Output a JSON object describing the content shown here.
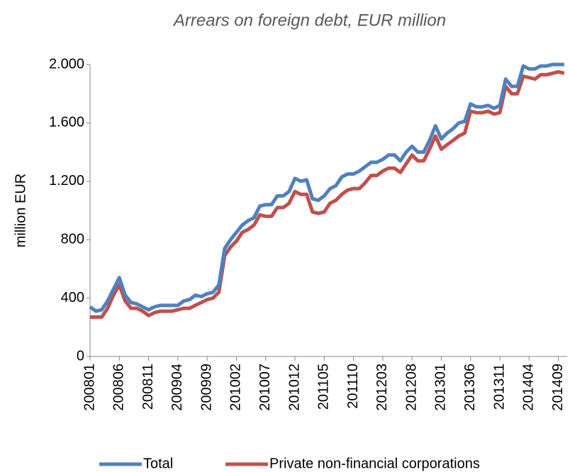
{
  "chart_data": {
    "type": "line",
    "title": "Arrears on foreign debt, EUR million",
    "y_label": "million EUR",
    "categories": [
      "200801",
      null,
      null,
      null,
      null,
      "200806",
      null,
      null,
      null,
      null,
      "200811",
      null,
      null,
      null,
      null,
      "200904",
      null,
      null,
      null,
      null,
      "200909",
      null,
      null,
      null,
      null,
      "201002",
      null,
      null,
      null,
      null,
      "201007",
      null,
      null,
      null,
      null,
      "201012",
      null,
      null,
      null,
      null,
      "201105",
      null,
      null,
      null,
      null,
      "201110",
      null,
      null,
      null,
      null,
      "201203",
      null,
      null,
      null,
      null,
      "201208",
      null,
      null,
      null,
      null,
      "201301",
      null,
      null,
      null,
      null,
      "201306",
      null,
      null,
      null,
      null,
      "201311",
      null,
      null,
      null,
      null,
      "201404",
      null,
      null,
      null,
      null,
      "201409",
      null
    ],
    "series": [
      {
        "name": "Total",
        "color": "#4f81bd",
        "values": [
          340,
          310,
          320,
          380,
          460,
          540,
          420,
          370,
          360,
          340,
          320,
          340,
          350,
          350,
          350,
          350,
          380,
          390,
          420,
          410,
          430,
          440,
          490,
          740,
          800,
          850,
          900,
          930,
          950,
          1030,
          1040,
          1040,
          1100,
          1100,
          1130,
          1220,
          1200,
          1210,
          1080,
          1070,
          1100,
          1150,
          1170,
          1230,
          1250,
          1250,
          1270,
          1300,
          1330,
          1330,
          1350,
          1380,
          1380,
          1340,
          1400,
          1440,
          1400,
          1400,
          1480,
          1580,
          1490,
          1530,
          1560,
          1600,
          1610,
          1730,
          1710,
          1710,
          1720,
          1700,
          1720,
          1900,
          1850,
          1850,
          1990,
          1970,
          1970,
          1990,
          1990,
          2000,
          2000,
          2000
        ]
      },
      {
        "name": "Private non-financial corporations",
        "color": "#c0504d",
        "values": [
          270,
          270,
          270,
          330,
          420,
          490,
          380,
          330,
          330,
          310,
          280,
          300,
          310,
          310,
          310,
          320,
          330,
          330,
          350,
          370,
          390,
          400,
          440,
          690,
          750,
          790,
          850,
          870,
          900,
          970,
          960,
          960,
          1020,
          1020,
          1050,
          1130,
          1110,
          1110,
          990,
          980,
          990,
          1050,
          1070,
          1110,
          1140,
          1150,
          1150,
          1190,
          1240,
          1240,
          1270,
          1290,
          1290,
          1260,
          1320,
          1380,
          1340,
          1340,
          1420,
          1510,
          1420,
          1450,
          1480,
          1510,
          1530,
          1680,
          1670,
          1670,
          1680,
          1660,
          1670,
          1850,
          1800,
          1800,
          1920,
          1910,
          1900,
          1930,
          1930,
          1940,
          1950,
          1940
        ]
      }
    ],
    "ylim": [
      0,
      2000
    ],
    "yticks": [
      0,
      {
        "value": 400,
        "label": "400"
      },
      {
        "value": 800,
        "label": "800"
      },
      {
        "value": 1200,
        "label": "1.200"
      },
      {
        "value": 1600,
        "label": "1.600"
      },
      {
        "value": 2000,
        "label": "2.000"
      }
    ],
    "legend": "bottom"
  }
}
